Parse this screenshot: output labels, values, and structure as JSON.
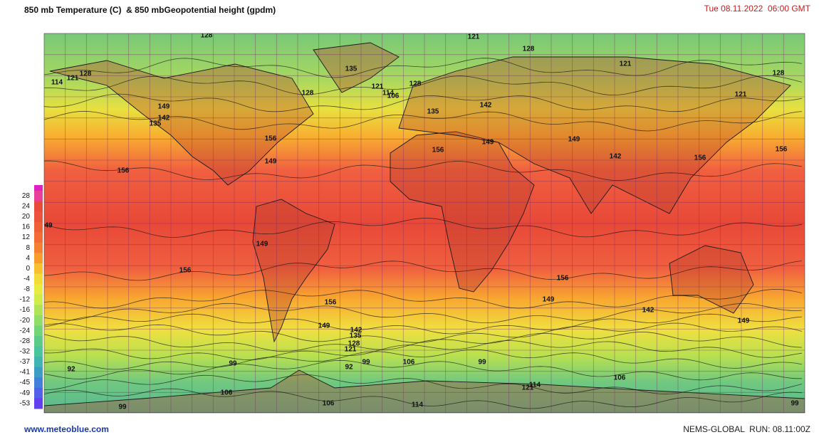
{
  "header": {
    "title": "850 mb Temperature (C)  & 850 mbGeopotential height (gpdm)",
    "timestamp": "Tue 08.11.2022  06:00 GMT"
  },
  "legend": {
    "ticks": [
      28,
      24,
      20,
      16,
      12,
      8,
      4,
      0,
      -4,
      -8,
      -12,
      -16,
      -20,
      -24,
      -28,
      -32,
      -37,
      -41,
      -45,
      -49,
      -53
    ],
    "colors": [
      "#e8409a",
      "#e84a3c",
      "#ec523a",
      "#f05e36",
      "#f26c34",
      "#f48030",
      "#f89c2c",
      "#f8c02e",
      "#f4dc38",
      "#e8ec40",
      "#cfec48",
      "#b0e458",
      "#92dc68",
      "#74d478",
      "#5acc88",
      "#4ac49c",
      "#40b4b0",
      "#3c9cc4",
      "#4080d8",
      "#5060e8",
      "#6040f0"
    ]
  },
  "map": {
    "contour_labels": [
      "128",
      "121",
      "128",
      "121",
      "128",
      "121",
      "114",
      "121",
      "128",
      "135",
      "128",
      "121",
      "114",
      "106",
      "128",
      "135",
      "142",
      "149",
      "142",
      "135",
      "156",
      "156",
      "149",
      "149",
      "142",
      "156",
      "156",
      "156",
      "149",
      "49",
      "149",
      "156",
      "156",
      "149",
      "156",
      "142",
      "149",
      "149",
      "142",
      "135",
      "128",
      "121",
      "92",
      "99",
      "92",
      "99",
      "106",
      "99",
      "106",
      "121",
      "114",
      "106",
      "99",
      "106",
      "114",
      "99"
    ]
  },
  "footer": {
    "source": "www.meteoblue.com",
    "run": "NEMS-GLOBAL  RUN: 08.11:00Z"
  }
}
